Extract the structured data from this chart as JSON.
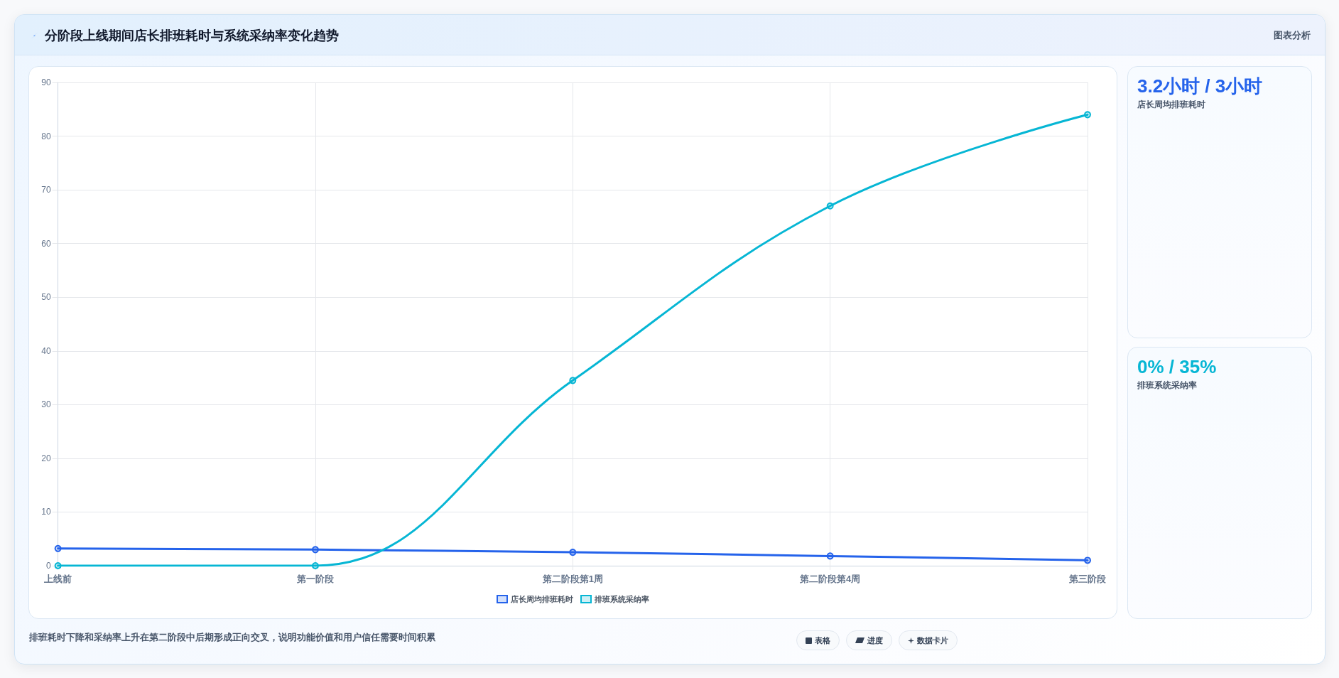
{
  "chart_data": {
    "type": "line",
    "title": "分阶段上线期间店长排班耗时与系统采纳率变化趋势",
    "categories": [
      "上线前",
      "第一阶段",
      "第二阶段第1周",
      "第二阶段第4周",
      "第三阶段"
    ],
    "series": [
      {
        "name": "店长周均排班耗时",
        "color": "#2563eb",
        "values": [
          3.2,
          3.0,
          2.5,
          1.8,
          1.0
        ]
      },
      {
        "name": "排班系统采纳率",
        "color": "#06b6d4",
        "values": [
          0,
          0,
          34.5,
          67,
          84
        ]
      }
    ],
    "ylim": [
      0,
      90
    ],
    "yticks": [
      0,
      10,
      20,
      30,
      40,
      50,
      60,
      70,
      80,
      90
    ],
    "grid": true,
    "legend": "bottom",
    "marker": "circle",
    "line_style": "solid",
    "annotations": [
      "图表分析",
      "3.2小时 / 3小时",
      "店长周均排班耗时",
      "0% / 35%",
      "排班系统采纳率",
      "排班耗时下降和采纳率上升在第二阶段中后期形成正向交叉，说明功能价值和用户信任需要时间积累",
      "表格",
      "进度",
      "数据卡片"
    ]
  }
}
